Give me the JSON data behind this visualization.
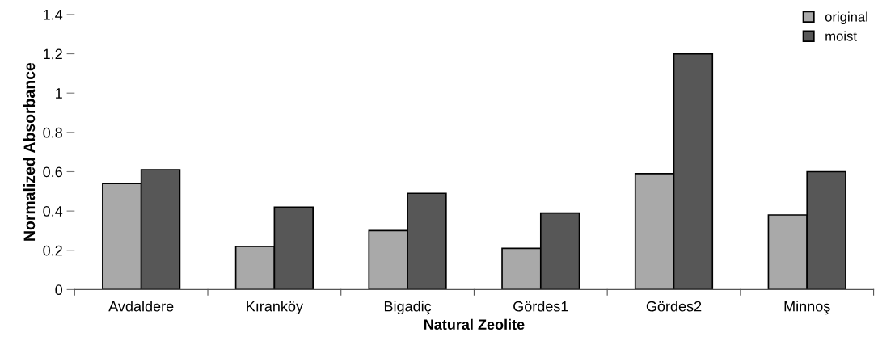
{
  "chart_data": {
    "type": "bar",
    "xlabel": "Natural Zeolite",
    "ylabel": "Normalized Absorbance",
    "categories": [
      "Avdaldere",
      "Kıranköy",
      "Bigadiç",
      "Gördes1",
      "Gördes2",
      "Minnoş"
    ],
    "series": [
      {
        "name": "original",
        "color": "#a9a9a9",
        "values": [
          0.54,
          0.22,
          0.3,
          0.21,
          0.59,
          0.38
        ]
      },
      {
        "name": "moist",
        "color": "#575757",
        "values": [
          0.61,
          0.42,
          0.49,
          0.39,
          1.2,
          0.6
        ]
      }
    ],
    "ylim": [
      0,
      1.4
    ],
    "yticks": [
      0,
      0.2,
      0.4,
      0.6,
      0.8,
      1,
      1.2,
      1.4
    ],
    "grid": false,
    "legend": "top right"
  }
}
